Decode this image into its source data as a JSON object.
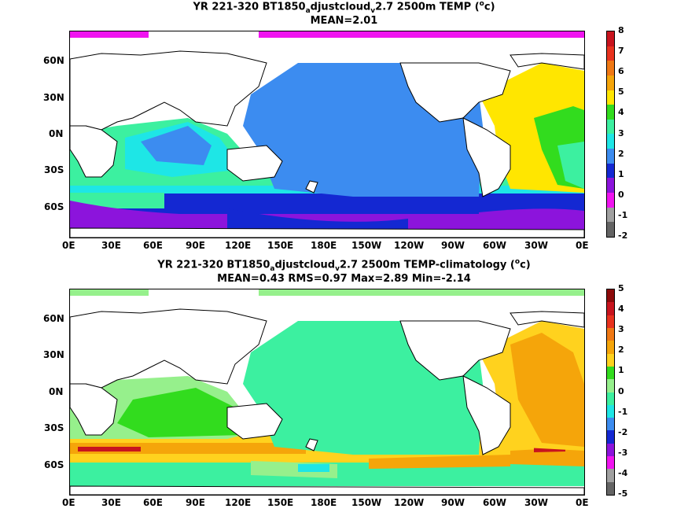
{
  "panels": [
    {
      "title_pre": "YR 221-320 BT1850",
      "title_sub1": "a",
      "title_mid": "djustcloud",
      "title_sub2": "v",
      "title_post": "2.7 2500m TEMP (",
      "title_sup": "o",
      "title_end": "c)",
      "stats": "MEAN=2.01",
      "colorbar_ticks": [
        "8",
        "7",
        "6",
        "5",
        "4",
        "3",
        "2",
        "1",
        "0",
        "-1",
        "-2"
      ],
      "colorbar_colors": [
        "#c8141e",
        "#e8321e",
        "#f07814",
        "#f5a50a",
        "#ffe600",
        "#32dc1e",
        "#3cf0a0",
        "#1ee6e6",
        "#3c8cf0",
        "#1428d2",
        "#8c14dc",
        "#f014f0",
        "#a0a0a0",
        "#646464"
      ]
    },
    {
      "title_pre": "YR 221-320 BT1850",
      "title_sub1": "a",
      "title_mid": "djustcloud",
      "title_sub2": "v",
      "title_post": "2.7 2500m TEMP-climatology (",
      "title_sup": "o",
      "title_end": "c)",
      "stats": "MEAN=0.43   RMS=0.97   Max=2.89   Min=-2.14",
      "colorbar_ticks": [
        "5",
        "4",
        "3",
        "2",
        "1",
        "0",
        "-1",
        "-2",
        "-3",
        "-4",
        "-5"
      ],
      "colorbar_colors": [
        "#8c0a0a",
        "#c8141e",
        "#e8321e",
        "#f07814",
        "#f5a50a",
        "#ffd21e",
        "#32dc1e",
        "#96f08c",
        "#3cf0a0",
        "#1ee6e6",
        "#3c8cf0",
        "#1428d2",
        "#8c14dc",
        "#f014f0",
        "#a0a0a0",
        "#646464"
      ]
    }
  ],
  "lat_labels": [
    "60N",
    "30N",
    "0N",
    "30S",
    "60S"
  ],
  "lon_labels": [
    "0E",
    "30E",
    "60E",
    "90E",
    "120E",
    "150E",
    "180E",
    "150W",
    "120W",
    "90W",
    "60W",
    "30W",
    "0E"
  ]
}
